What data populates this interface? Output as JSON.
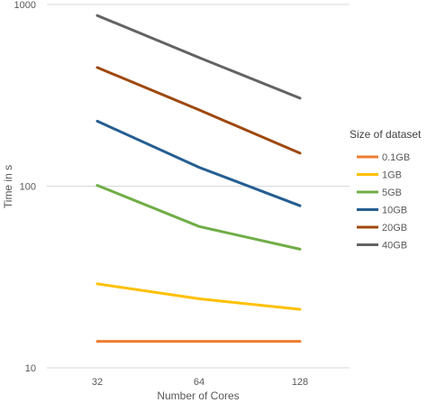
{
  "chart_data": {
    "type": "line",
    "xlabel": "Number of Cores",
    "ylabel": "Time in s",
    "y_scale": "log",
    "ylim": [
      10,
      1000
    ],
    "y_ticks": [
      "10",
      "100",
      "1000"
    ],
    "categories": [
      "32",
      "64",
      "128"
    ],
    "grid": "horizontal",
    "legend_position": "right",
    "legend_title": "Size of dataset",
    "series": [
      {
        "name": "0.1GB",
        "color": "#ED7D31",
        "values": [
          14,
          14,
          14
        ]
      },
      {
        "name": "1GB",
        "color": "#FFC000",
        "values": [
          29,
          24,
          21
        ]
      },
      {
        "name": "5GB",
        "color": "#70AD47",
        "values": [
          101,
          60,
          45
        ]
      },
      {
        "name": "10GB",
        "color": "#255E91",
        "values": [
          228,
          127,
          78
        ]
      },
      {
        "name": "20GB",
        "color": "#9E480E",
        "values": [
          450,
          263,
          152
        ]
      },
      {
        "name": "40GB",
        "color": "#636363",
        "values": [
          870,
          510,
          305
        ]
      }
    ]
  }
}
